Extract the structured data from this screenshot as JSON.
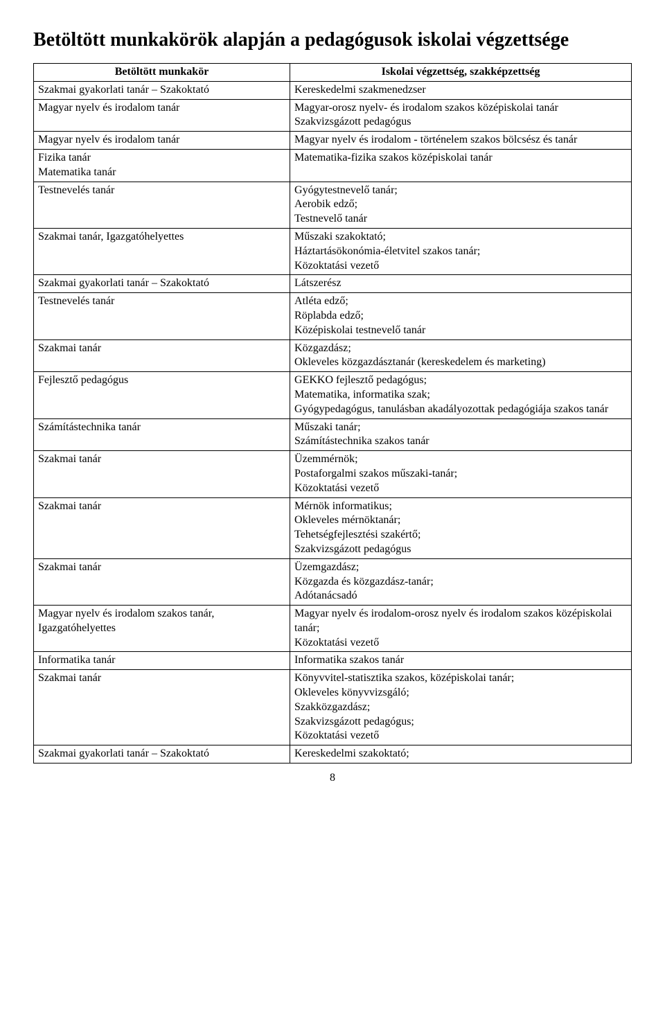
{
  "title": "Betöltött munkakörök alapján a pedagógusok iskolai végzettsége",
  "columns": [
    "Betöltött munkakör",
    "Iskolai végzettség, szakképzettség"
  ],
  "rows": [
    [
      "Szakmai gyakorlati tanár – Szakoktató",
      "Kereskedelmi szakmenedzser"
    ],
    [
      "Magyar nyelv és irodalom tanár",
      "Magyar-orosz nyelv- és irodalom szakos középiskolai tanár\nSzakvizsgázott pedagógus"
    ],
    [
      "Magyar nyelv és irodalom tanár",
      "Magyar nyelv és irodalom - történelem szakos bölcsész és tanár"
    ],
    [
      "Fizika tanár\nMatematika tanár",
      "Matematika-fizika szakos középiskolai tanár"
    ],
    [
      "Testnevelés tanár",
      "Gyógytestnevelő tanár;\nAerobik edző;\nTestnevelő tanár"
    ],
    [
      "Szakmai tanár, Igazgatóhelyettes",
      "Műszaki szakoktató;\nHáztartásökonómia-életvitel szakos tanár;\nKözoktatási vezető"
    ],
    [
      "Szakmai gyakorlati tanár – Szakoktató",
      "Látszerész"
    ],
    [
      "Testnevelés tanár",
      "Atléta edző;\nRöplabda edző;\nKözépiskolai testnevelő tanár"
    ],
    [
      "Szakmai tanár",
      "Közgazdász;\nOkleveles közgazdásztanár (kereskedelem és marketing)"
    ],
    [
      "Fejlesztő pedagógus",
      "GEKKO fejlesztő pedagógus;\nMatematika, informatika szak;\nGyógypedagógus, tanulásban akadályozottak pedagógiája szakos tanár"
    ],
    [
      "Számítástechnika tanár",
      "Műszaki tanár;\nSzámítástechnika szakos tanár"
    ],
    [
      "Szakmai tanár",
      "Üzemmérnök;\nPostaforgalmi szakos műszaki-tanár;\nKözoktatási vezető"
    ],
    [
      "Szakmai tanár",
      "Mérnök informatikus;\nOkleveles mérnöktanár;\nTehetségfejlesztési szakértő;\nSzakvizsgázott pedagógus"
    ],
    [
      "Szakmai tanár",
      "Üzemgazdász;\nKözgazda és közgazdász-tanár;\nAdótanácsadó"
    ],
    [
      "Magyar nyelv és irodalom szakos tanár, Igazgatóhelyettes",
      "Magyar nyelv és irodalom-orosz nyelv és irodalom szakos középiskolai tanár;\nKözoktatási vezető"
    ],
    [
      "Informatika tanár",
      "Informatika szakos tanár"
    ],
    [
      "Szakmai tanár",
      "Könyvvitel-statisztika szakos, középiskolai tanár;\nOkleveles könyvvizsgáló;\nSzakközgazdász;\nSzakvizsgázott pedagógus;\nKözoktatási vezető"
    ],
    [
      "Szakmai gyakorlati tanár – Szakoktató",
      "Kereskedelmi szakoktató;"
    ]
  ],
  "page_number": "8"
}
